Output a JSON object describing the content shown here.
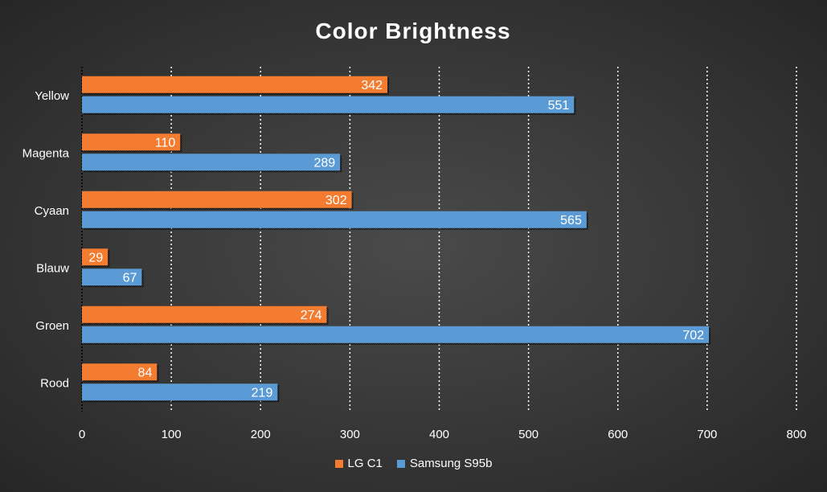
{
  "colors": {
    "series1": "#f47c30",
    "series2": "#5b9bd5",
    "text": "#ffffff",
    "grid": "#ffffff"
  },
  "chart_data": {
    "type": "bar",
    "orientation": "horizontal",
    "title": "Color Brightness",
    "categories": [
      "Yellow",
      "Magenta",
      "Cyaan",
      "Blauw",
      "Groen",
      "Rood"
    ],
    "series": [
      {
        "name": "LG C1",
        "values": [
          342,
          110,
          302,
          29,
          274,
          84
        ]
      },
      {
        "name": "Samsung S95b",
        "values": [
          551,
          289,
          565,
          67,
          702,
          219
        ]
      }
    ],
    "xlim": [
      0,
      800
    ],
    "x_ticks": [
      "0",
      "100",
      "200",
      "300",
      "400",
      "500",
      "600",
      "700",
      "800"
    ],
    "grid": true,
    "legend": "bottom"
  }
}
